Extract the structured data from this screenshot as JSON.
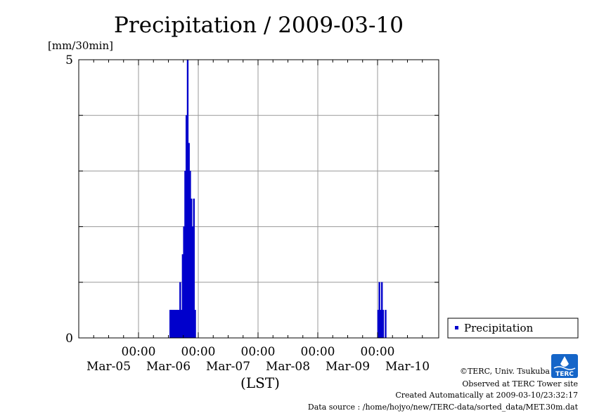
{
  "chart_data": {
    "type": "bar",
    "title": "Precipitation / 2009-03-10",
    "y_unit": "[mm/30min]",
    "xlabel": "(LST)",
    "ylim": [
      0,
      5
    ],
    "y_ticks": [
      "0",
      "5"
    ],
    "x_ticks": [
      {
        "time": "00:00",
        "date": "Mar-05"
      },
      {
        "time": "00:00",
        "date": "Mar-06"
      },
      {
        "time": "00:00",
        "date": "Mar-07"
      },
      {
        "time": "00:00",
        "date": "Mar-08"
      },
      {
        "time": "00:00",
        "date": "Mar-09"
      }
    ],
    "x_tick_end_date": "Mar-10",
    "grid": true,
    "legend": "right",
    "series": [
      {
        "name": "Precipitation",
        "color": "#0000cc",
        "unit": "mm/30min",
        "points": [
          {
            "t": "2009-03-05 12:30",
            "v": 0.5
          },
          {
            "t": "2009-03-05 13:00",
            "v": 0.5
          },
          {
            "t": "2009-03-05 13:30",
            "v": 0.5
          },
          {
            "t": "2009-03-05 14:00",
            "v": 0.5
          },
          {
            "t": "2009-03-05 14:30",
            "v": 0.5
          },
          {
            "t": "2009-03-05 15:00",
            "v": 0.5
          },
          {
            "t": "2009-03-05 15:30",
            "v": 0.5
          },
          {
            "t": "2009-03-05 16:00",
            "v": 0.5
          },
          {
            "t": "2009-03-05 16:30",
            "v": 1.0
          },
          {
            "t": "2009-03-05 17:00",
            "v": 0.5
          },
          {
            "t": "2009-03-05 17:30",
            "v": 1.5
          },
          {
            "t": "2009-03-05 18:00",
            "v": 2.0
          },
          {
            "t": "2009-03-05 18:30",
            "v": 3.0
          },
          {
            "t": "2009-03-05 19:00",
            "v": 4.0
          },
          {
            "t": "2009-03-05 19:30",
            "v": 5.0
          },
          {
            "t": "2009-03-05 20:00",
            "v": 3.5
          },
          {
            "t": "2009-03-05 20:30",
            "v": 3.0
          },
          {
            "t": "2009-03-05 21:00",
            "v": 2.5
          },
          {
            "t": "2009-03-05 21:30",
            "v": 2.0
          },
          {
            "t": "2009-03-05 22:00",
            "v": 2.5
          },
          {
            "t": "2009-03-05 22:30",
            "v": 0.5
          },
          {
            "t": "2009-03-09 00:00",
            "v": 0.5
          },
          {
            "t": "2009-03-09 00:30",
            "v": 1.0
          },
          {
            "t": "2009-03-09 01:00",
            "v": 0.5
          },
          {
            "t": "2009-03-09 01:30",
            "v": 1.0
          },
          {
            "t": "2009-03-09 02:00",
            "v": 0.5
          },
          {
            "t": "2009-03-09 03:00",
            "v": 0.5
          }
        ]
      }
    ]
  },
  "credits": {
    "copyright": "©TERC, Univ. Tsukuba",
    "observed": "Observed at TERC Tower site",
    "created": "Created Automatically at 2009-03-10/23:32:17",
    "source": "Data source : /home/hojyo/new/TERC-data/sorted_data/MET.30m.dat"
  },
  "logo_text": "TERC"
}
